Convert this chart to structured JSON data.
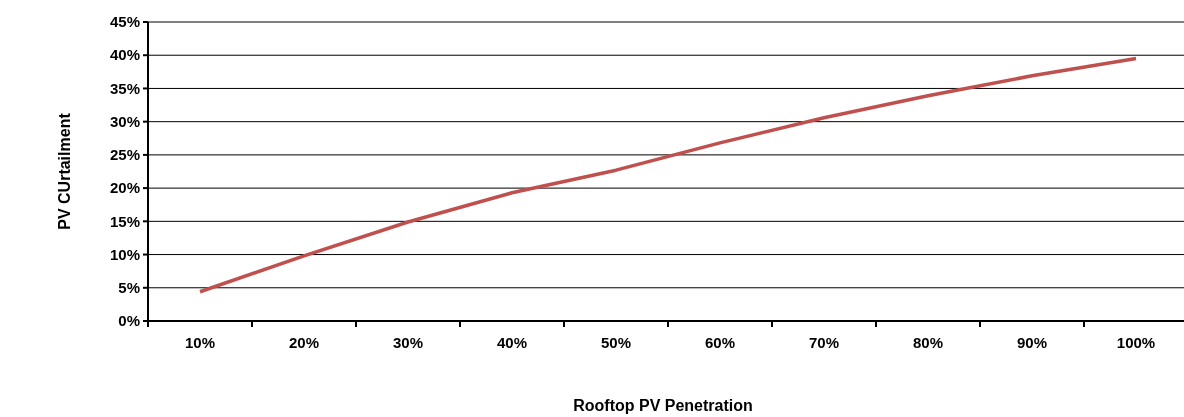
{
  "chart_data": {
    "type": "line",
    "xlabel": "Rooftop PV Penetration",
    "ylabel": "PV CUrtailment",
    "categories": [
      "10%",
      "20%",
      "30%",
      "40%",
      "50%",
      "60%",
      "70%",
      "80%",
      "90%",
      "100%"
    ],
    "series": [
      {
        "color": "#c0504d",
        "values": [
          0.044,
          0.098,
          0.149,
          0.193,
          0.227,
          0.268,
          0.306,
          0.339,
          0.369,
          0.395
        ]
      }
    ],
    "ylim": [
      0,
      0.45
    ],
    "yticks": [
      {
        "value": 0,
        "label": "0%"
      },
      {
        "value": 0.05,
        "label": "5%"
      },
      {
        "value": 0.1,
        "label": "10%"
      },
      {
        "value": 0.15,
        "label": "15%"
      },
      {
        "value": 0.2,
        "label": "20%"
      },
      {
        "value": 0.25,
        "label": "25%"
      },
      {
        "value": 0.3,
        "label": "30%"
      },
      {
        "value": 0.35,
        "label": "35%"
      },
      {
        "value": 0.4,
        "label": "40%"
      },
      {
        "value": 0.45,
        "label": "45%"
      }
    ],
    "grid": "y",
    "marker": "none",
    "line_style": "solid"
  }
}
